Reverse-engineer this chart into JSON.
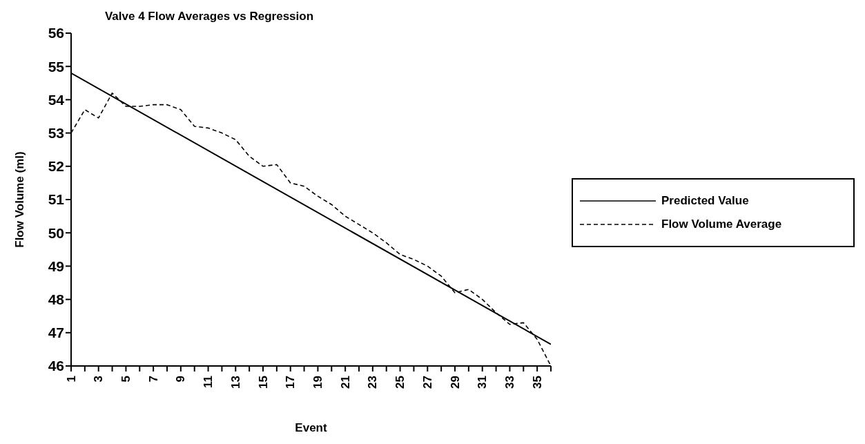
{
  "chart_data": {
    "type": "line",
    "title": "Valve 4 Flow Averages vs Regression",
    "xlabel": "Event",
    "ylabel": "Flow Volume (ml)",
    "xlim": [
      1,
      36
    ],
    "xticks": [
      1,
      {
        "value": 2,
        "label": null
      },
      3,
      {
        "value": 4,
        "label": null
      },
      5,
      {
        "value": 6,
        "label": null
      },
      7,
      {
        "value": 8,
        "label": null
      },
      9,
      {
        "value": 10,
        "label": null
      },
      11,
      {
        "value": 12,
        "label": null
      },
      13,
      {
        "value": 14,
        "label": null
      },
      15,
      {
        "value": 16,
        "label": null
      },
      17,
      {
        "value": 18,
        "label": null
      },
      19,
      {
        "value": 20,
        "label": null
      },
      21,
      {
        "value": 22,
        "label": null
      },
      23,
      {
        "value": 24,
        "label": null
      },
      25,
      {
        "value": 26,
        "label": null
      },
      27,
      {
        "value": 28,
        "label": null
      },
      29,
      {
        "value": 30,
        "label": null
      },
      31,
      {
        "value": 32,
        "label": null
      },
      33,
      {
        "value": 34,
        "label": null
      },
      35,
      {
        "value": 36,
        "label": null
      }
    ],
    "ylim": [
      46,
      56
    ],
    "yticks": [
      46,
      47,
      48,
      49,
      50,
      51,
      52,
      53,
      54,
      55,
      56
    ],
    "grid": false,
    "legend": "right",
    "marker": "none",
    "series": [
      {
        "name": "Predicted Value",
        "color": "#000000",
        "line_style": "solid",
        "x": [
          1,
          36
        ],
        "values": [
          54.8,
          46.65
        ]
      },
      {
        "name": "Flow Volume Average",
        "color": "#000000",
        "line_style": "dashed",
        "x": [
          1,
          2,
          3,
          4,
          5,
          6,
          7,
          8,
          9,
          10,
          11,
          12,
          13,
          14,
          15,
          16,
          17,
          18,
          19,
          20,
          21,
          22,
          23,
          24,
          25,
          26,
          27,
          28,
          29,
          30,
          31,
          32,
          33,
          34,
          35,
          36
        ],
        "values": [
          53.0,
          53.7,
          53.45,
          54.2,
          53.8,
          53.8,
          53.85,
          53.85,
          53.7,
          53.2,
          53.15,
          53.0,
          52.8,
          52.3,
          52.0,
          52.05,
          51.5,
          51.4,
          51.1,
          50.85,
          50.5,
          50.25,
          50.0,
          49.7,
          49.35,
          49.2,
          49.0,
          48.7,
          48.2,
          48.3,
          48.0,
          47.6,
          47.25,
          47.3,
          46.8,
          46.0
        ]
      }
    ]
  }
}
